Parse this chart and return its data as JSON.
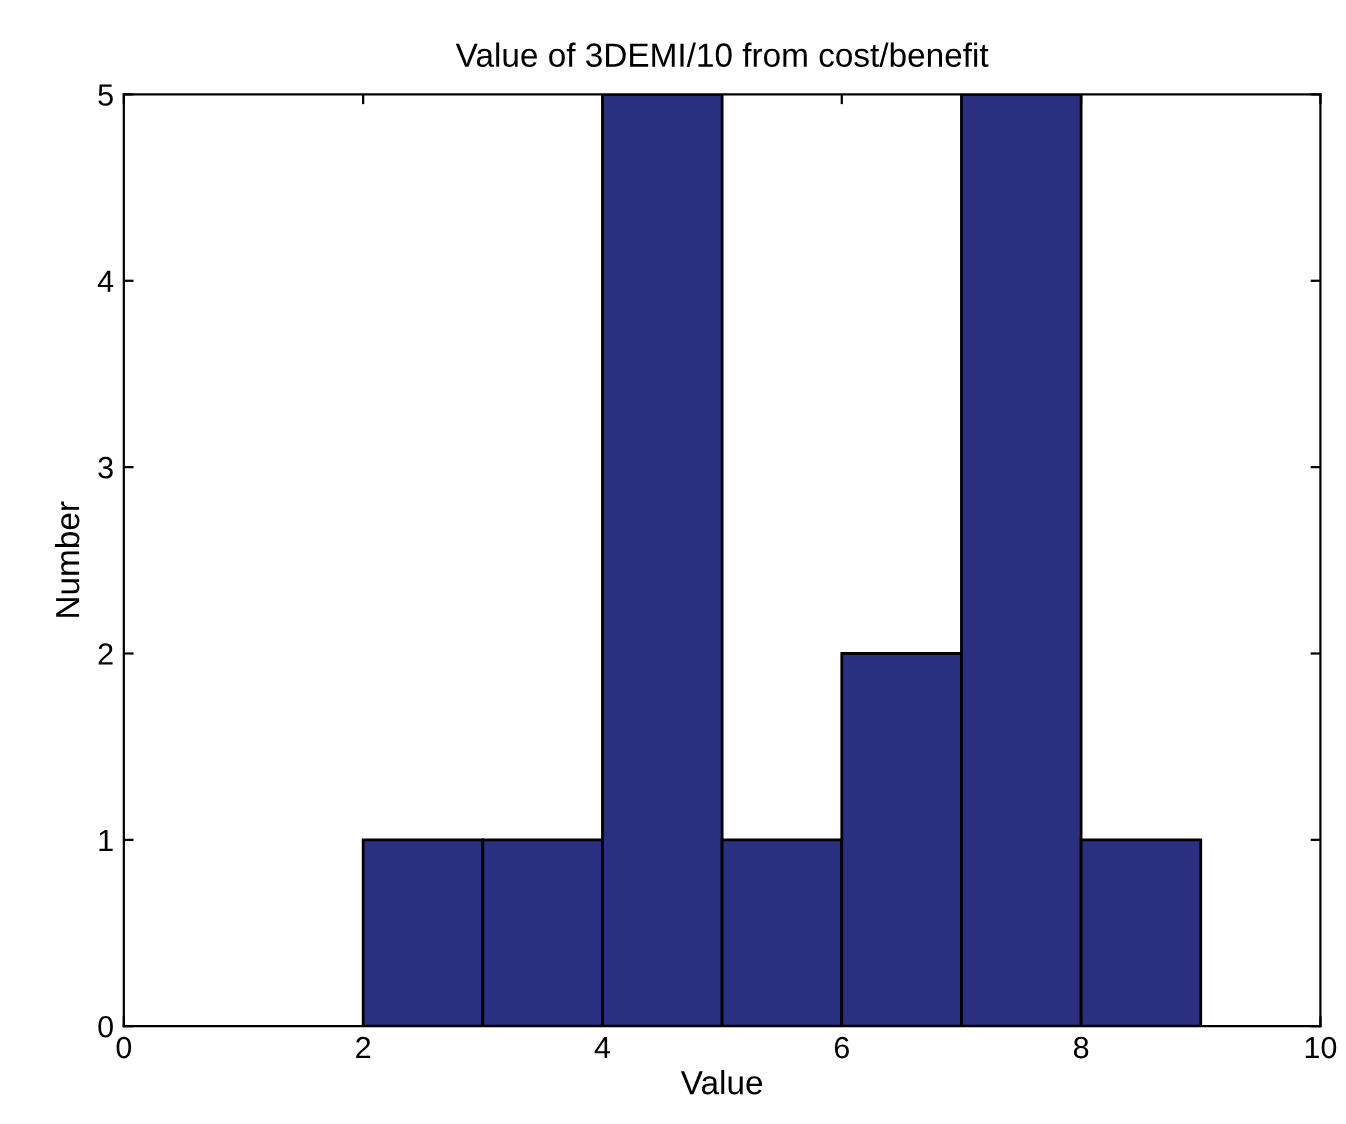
{
  "chart_data": {
    "type": "histogram",
    "title": "Value of 3DEMI/10 from cost/benefit",
    "xlabel": "Value",
    "ylabel": "Number",
    "bins": [
      2,
      3,
      4,
      5,
      6,
      7,
      8,
      9
    ],
    "values": [
      1,
      1,
      5,
      1,
      2,
      5,
      1
    ],
    "color": "#2a2f7f",
    "xlim": [
      0,
      10
    ],
    "xticks": [
      0,
      2,
      4,
      6,
      8,
      10
    ],
    "ylim": [
      0,
      5
    ],
    "yticks": [
      0,
      1,
      2,
      3,
      4,
      5
    ]
  }
}
